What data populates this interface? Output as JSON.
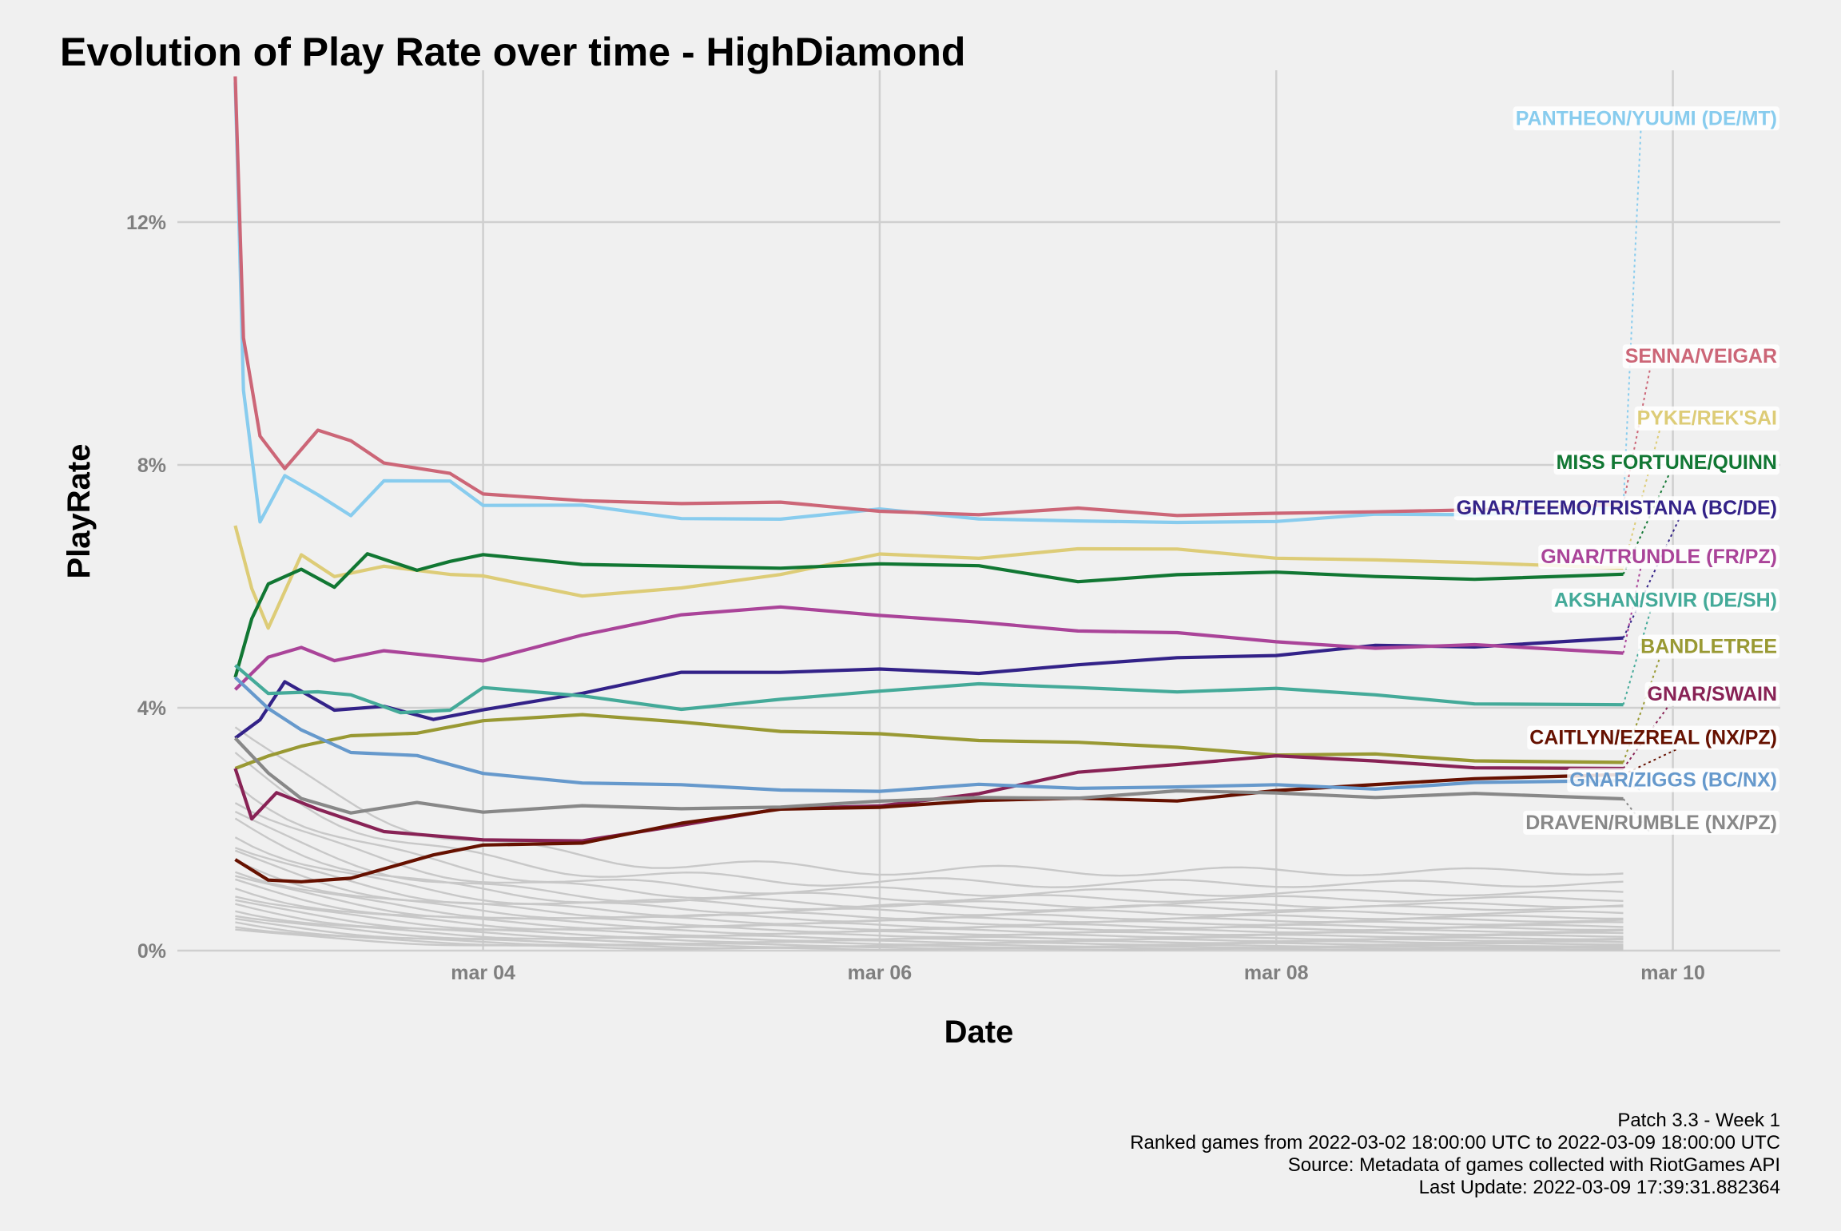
{
  "chart_data": {
    "type": "line",
    "title": "Evolution of Play Rate over time - HighDiamond",
    "xlabel": "Date",
    "ylabel": "PlayRate",
    "x_ticks": [
      "mar 04",
      "mar 06",
      "mar 08",
      "mar 10"
    ],
    "y_ticks": [
      "0%",
      "4%",
      "8%",
      "12%"
    ],
    "xlim": [
      "2022-03-02 11:00",
      "2022-03-10 13:00"
    ],
    "ylim": [
      0,
      14.5
    ],
    "grid": true,
    "legend": "none (direct labels at right)",
    "caption": [
      "Patch 3.3 - Week 1",
      "Ranked games from 2022-03-02 18:00:00 UTC to 2022-03-09 18:00:00 UTC",
      "Source: Metadata of games collected with RiotGames API",
      "Last Update: 2022-03-09 17:39:31.882364"
    ],
    "series": [
      {
        "name": "PANTHEON/YUUMI (DE/MT)",
        "color": "#88ccee",
        "label_y": 13.72,
        "points": [
          [
            "2022-03-02 18:00",
            14.3
          ],
          [
            "2022-03-02 19:00",
            9.2
          ],
          [
            "2022-03-02 21:00",
            7.1
          ],
          [
            "2022-03-03 00:00",
            7.8
          ],
          [
            "2022-03-03 04:00",
            7.5
          ],
          [
            "2022-03-03 08:00",
            7.2
          ],
          [
            "2022-03-03 12:00",
            7.7
          ],
          [
            "2022-03-03 20:00",
            7.75
          ],
          [
            "2022-03-04 00:00",
            7.35
          ],
          [
            "2022-03-04 12:00",
            7.3
          ],
          [
            "2022-03-05 00:00",
            7.15
          ],
          [
            "2022-03-05 12:00",
            7.1
          ],
          [
            "2022-03-06 00:00",
            7.25
          ],
          [
            "2022-03-06 12:00",
            7.15
          ],
          [
            "2022-03-07 00:00",
            7.05
          ],
          [
            "2022-03-07 12:00",
            7.05
          ],
          [
            "2022-03-08 00:00",
            7.1
          ],
          [
            "2022-03-08 12:00",
            7.15
          ],
          [
            "2022-03-09 00:00",
            7.2
          ],
          [
            "2022-03-09 18:00",
            7.3
          ]
        ]
      },
      {
        "name": "SENNA/VEIGAR",
        "color": "#cc6677",
        "label_y": 9.8,
        "points": [
          [
            "2022-03-02 18:00",
            14.4
          ],
          [
            "2022-03-02 19:00",
            10.1
          ],
          [
            "2022-03-02 21:00",
            8.5
          ],
          [
            "2022-03-03 00:00",
            7.9
          ],
          [
            "2022-03-03 04:00",
            8.6
          ],
          [
            "2022-03-03 08:00",
            8.4
          ],
          [
            "2022-03-03 12:00",
            8.0
          ],
          [
            "2022-03-03 20:00",
            7.9
          ],
          [
            "2022-03-04 00:00",
            7.5
          ],
          [
            "2022-03-04 12:00",
            7.4
          ],
          [
            "2022-03-05 00:00",
            7.4
          ],
          [
            "2022-03-05 12:00",
            7.35
          ],
          [
            "2022-03-06 00:00",
            7.25
          ],
          [
            "2022-03-06 12:00",
            7.2
          ],
          [
            "2022-03-07 00:00",
            7.25
          ],
          [
            "2022-03-07 12:00",
            7.2
          ],
          [
            "2022-03-08 00:00",
            7.2
          ],
          [
            "2022-03-08 12:00",
            7.2
          ],
          [
            "2022-03-09 00:00",
            7.3
          ],
          [
            "2022-03-09 18:00",
            7.35
          ]
        ]
      },
      {
        "name": "PYKE/REK'SAI",
        "color": "#ddcc77",
        "label_y": 8.78,
        "points": [
          [
            "2022-03-02 18:00",
            7.0
          ],
          [
            "2022-03-02 20:00",
            6.0
          ],
          [
            "2022-03-02 22:00",
            5.3
          ],
          [
            "2022-03-03 02:00",
            6.5
          ],
          [
            "2022-03-03 06:00",
            6.2
          ],
          [
            "2022-03-03 12:00",
            6.3
          ],
          [
            "2022-03-03 20:00",
            6.2
          ],
          [
            "2022-03-04 00:00",
            6.2
          ],
          [
            "2022-03-04 12:00",
            5.8
          ],
          [
            "2022-03-05 00:00",
            6.0
          ],
          [
            "2022-03-05 12:00",
            6.2
          ],
          [
            "2022-03-06 00:00",
            6.5
          ],
          [
            "2022-03-06 12:00",
            6.5
          ],
          [
            "2022-03-07 00:00",
            6.6
          ],
          [
            "2022-03-07 12:00",
            6.6
          ],
          [
            "2022-03-08 00:00",
            6.5
          ],
          [
            "2022-03-08 12:00",
            6.4
          ],
          [
            "2022-03-09 00:00",
            6.4
          ],
          [
            "2022-03-09 18:00",
            6.3
          ]
        ]
      },
      {
        "name": "MISS FORTUNE/QUINN",
        "color": "#117733",
        "label_y": 8.05,
        "points": [
          [
            "2022-03-02 18:00",
            4.5
          ],
          [
            "2022-03-02 20:00",
            5.5
          ],
          [
            "2022-03-02 22:00",
            6.0
          ],
          [
            "2022-03-03 02:00",
            6.3
          ],
          [
            "2022-03-03 06:00",
            6.0
          ],
          [
            "2022-03-03 10:00",
            6.5
          ],
          [
            "2022-03-03 16:00",
            6.3
          ],
          [
            "2022-03-03 20:00",
            6.4
          ],
          [
            "2022-03-04 00:00",
            6.5
          ],
          [
            "2022-03-04 12:00",
            6.4
          ],
          [
            "2022-03-05 00:00",
            6.3
          ],
          [
            "2022-03-05 12:00",
            6.3
          ],
          [
            "2022-03-06 00:00",
            6.4
          ],
          [
            "2022-03-06 12:00",
            6.3
          ],
          [
            "2022-03-07 00:00",
            6.1
          ],
          [
            "2022-03-07 12:00",
            6.2
          ],
          [
            "2022-03-08 00:00",
            6.2
          ],
          [
            "2022-03-08 12:00",
            6.2
          ],
          [
            "2022-03-09 00:00",
            6.1
          ],
          [
            "2022-03-09 18:00",
            6.2
          ]
        ]
      },
      {
        "name": "GNAR/TEEMO/TRISTANA (BC/DE)",
        "color": "#332288",
        "label_y": 7.3,
        "points": [
          [
            "2022-03-02 18:00",
            3.5
          ],
          [
            "2022-03-02 21:00",
            3.8
          ],
          [
            "2022-03-03 00:00",
            4.4
          ],
          [
            "2022-03-03 06:00",
            4.0
          ],
          [
            "2022-03-03 12:00",
            4.0
          ],
          [
            "2022-03-03 18:00",
            3.8
          ],
          [
            "2022-03-04 00:00",
            4.0
          ],
          [
            "2022-03-04 12:00",
            4.2
          ],
          [
            "2022-03-05 00:00",
            4.6
          ],
          [
            "2022-03-05 12:00",
            4.6
          ],
          [
            "2022-03-06 00:00",
            4.6
          ],
          [
            "2022-03-06 12:00",
            4.6
          ],
          [
            "2022-03-07 00:00",
            4.7
          ],
          [
            "2022-03-07 12:00",
            4.8
          ],
          [
            "2022-03-08 00:00",
            4.9
          ],
          [
            "2022-03-08 12:00",
            5.0
          ],
          [
            "2022-03-09 00:00",
            5.0
          ],
          [
            "2022-03-09 18:00",
            5.15
          ]
        ]
      },
      {
        "name": "GNAR/TRUNDLE (FR/PZ)",
        "color": "#aa4499",
        "label_y": 6.5,
        "points": [
          [
            "2022-03-02 18:00",
            4.3
          ],
          [
            "2022-03-02 22:00",
            4.8
          ],
          [
            "2022-03-03 02:00",
            5.0
          ],
          [
            "2022-03-03 06:00",
            4.8
          ],
          [
            "2022-03-03 12:00",
            4.9
          ],
          [
            "2022-03-04 00:00",
            4.8
          ],
          [
            "2022-03-04 12:00",
            5.2
          ],
          [
            "2022-03-05 00:00",
            5.5
          ],
          [
            "2022-03-05 12:00",
            5.7
          ],
          [
            "2022-03-06 00:00",
            5.5
          ],
          [
            "2022-03-06 12:00",
            5.4
          ],
          [
            "2022-03-07 00:00",
            5.3
          ],
          [
            "2022-03-07 12:00",
            5.2
          ],
          [
            "2022-03-08 00:00",
            5.1
          ],
          [
            "2022-03-08 12:00",
            5.0
          ],
          [
            "2022-03-09 00:00",
            5.0
          ],
          [
            "2022-03-09 18:00",
            4.9
          ]
        ]
      },
      {
        "name": "AKSHAN/SIVIR (DE/SH)",
        "color": "#44aa99",
        "label_y": 5.78,
        "points": [
          [
            "2022-03-02 18:00",
            4.7
          ],
          [
            "2022-03-02 22:00",
            4.2
          ],
          [
            "2022-03-03 04:00",
            4.3
          ],
          [
            "2022-03-03 08:00",
            4.2
          ],
          [
            "2022-03-03 14:00",
            3.9
          ],
          [
            "2022-03-03 20:00",
            4.0
          ],
          [
            "2022-03-04 00:00",
            4.3
          ],
          [
            "2022-03-04 12:00",
            4.2
          ],
          [
            "2022-03-05 00:00",
            4.0
          ],
          [
            "2022-03-05 12:00",
            4.1
          ],
          [
            "2022-03-06 00:00",
            4.3
          ],
          [
            "2022-03-06 12:00",
            4.4
          ],
          [
            "2022-03-07 00:00",
            4.3
          ],
          [
            "2022-03-07 12:00",
            4.3
          ],
          [
            "2022-03-08 00:00",
            4.3
          ],
          [
            "2022-03-08 12:00",
            4.2
          ],
          [
            "2022-03-09 00:00",
            4.1
          ],
          [
            "2022-03-09 18:00",
            4.05
          ]
        ]
      },
      {
        "name": "BANDLETREE",
        "color": "#999933",
        "label_y": 5.02,
        "points": [
          [
            "2022-03-02 18:00",
            3.0
          ],
          [
            "2022-03-02 22:00",
            3.2
          ],
          [
            "2022-03-03 02:00",
            3.4
          ],
          [
            "2022-03-03 08:00",
            3.5
          ],
          [
            "2022-03-03 16:00",
            3.6
          ],
          [
            "2022-03-04 00:00",
            3.8
          ],
          [
            "2022-03-04 12:00",
            3.85
          ],
          [
            "2022-03-05 00:00",
            3.8
          ],
          [
            "2022-03-05 12:00",
            3.6
          ],
          [
            "2022-03-06 00:00",
            3.55
          ],
          [
            "2022-03-06 12:00",
            3.5
          ],
          [
            "2022-03-07 00:00",
            3.4
          ],
          [
            "2022-03-07 12:00",
            3.35
          ],
          [
            "2022-03-08 00:00",
            3.25
          ],
          [
            "2022-03-08 12:00",
            3.2
          ],
          [
            "2022-03-09 00:00",
            3.15
          ],
          [
            "2022-03-09 18:00",
            3.1
          ]
        ]
      },
      {
        "name": "GNAR/SWAIN",
        "color": "#882255",
        "label_y": 4.24,
        "points": [
          [
            "2022-03-02 18:00",
            3.0
          ],
          [
            "2022-03-02 20:00",
            2.2
          ],
          [
            "2022-03-02 23:00",
            2.6
          ],
          [
            "2022-03-03 04:00",
            2.3
          ],
          [
            "2022-03-03 12:00",
            2.0
          ],
          [
            "2022-03-04 00:00",
            1.8
          ],
          [
            "2022-03-04 12:00",
            1.8
          ],
          [
            "2022-03-05 00:00",
            2.1
          ],
          [
            "2022-03-05 12:00",
            2.3
          ],
          [
            "2022-03-06 00:00",
            2.4
          ],
          [
            "2022-03-06 12:00",
            2.6
          ],
          [
            "2022-03-07 00:00",
            2.9
          ],
          [
            "2022-03-07 12:00",
            3.1
          ],
          [
            "2022-03-08 00:00",
            3.2
          ],
          [
            "2022-03-08 12:00",
            3.1
          ],
          [
            "2022-03-09 00:00",
            3.05
          ],
          [
            "2022-03-09 18:00",
            3.0
          ]
        ]
      },
      {
        "name": "CAITLYN/EZREAL (NX/PZ)",
        "color": "#661100",
        "label_y": 3.52,
        "points": [
          [
            "2022-03-02 18:00",
            1.5
          ],
          [
            "2022-03-02 22:00",
            1.2
          ],
          [
            "2022-03-03 02:00",
            1.1
          ],
          [
            "2022-03-03 08:00",
            1.2
          ],
          [
            "2022-03-03 18:00",
            1.6
          ],
          [
            "2022-03-04 00:00",
            1.7
          ],
          [
            "2022-03-04 12:00",
            1.8
          ],
          [
            "2022-03-05 00:00",
            2.1
          ],
          [
            "2022-03-05 12:00",
            2.3
          ],
          [
            "2022-03-06 00:00",
            2.4
          ],
          [
            "2022-03-06 12:00",
            2.45
          ],
          [
            "2022-03-07 00:00",
            2.5
          ],
          [
            "2022-03-07 12:00",
            2.5
          ],
          [
            "2022-03-08 00:00",
            2.6
          ],
          [
            "2022-03-08 12:00",
            2.75
          ],
          [
            "2022-03-09 00:00",
            2.85
          ],
          [
            "2022-03-09 18:00",
            2.9
          ]
        ]
      },
      {
        "name": "GNAR/ZIGGS (BC/NX)",
        "color": "#6699cc",
        "label_y": 2.82,
        "points": [
          [
            "2022-03-02 18:00",
            4.5
          ],
          [
            "2022-03-02 22:00",
            4.0
          ],
          [
            "2022-03-03 02:00",
            3.6
          ],
          [
            "2022-03-03 08:00",
            3.3
          ],
          [
            "2022-03-03 16:00",
            3.2
          ],
          [
            "2022-03-04 00:00",
            2.9
          ],
          [
            "2022-03-04 12:00",
            2.8
          ],
          [
            "2022-03-05 00:00",
            2.7
          ],
          [
            "2022-03-05 12:00",
            2.65
          ],
          [
            "2022-03-06 00:00",
            2.65
          ],
          [
            "2022-03-06 12:00",
            2.7
          ],
          [
            "2022-03-07 00:00",
            2.7
          ],
          [
            "2022-03-07 12:00",
            2.7
          ],
          [
            "2022-03-08 00:00",
            2.7
          ],
          [
            "2022-03-08 12:00",
            2.7
          ],
          [
            "2022-03-09 00:00",
            2.75
          ],
          [
            "2022-03-09 18:00",
            2.8
          ]
        ]
      },
      {
        "name": "DRAVEN/RUMBLE (NX/PZ)",
        "color": "#888888",
        "label_y": 2.12,
        "points": [
          [
            "2022-03-02 18:00",
            3.5
          ],
          [
            "2022-03-02 22:00",
            2.9
          ],
          [
            "2022-03-03 02:00",
            2.5
          ],
          [
            "2022-03-03 08:00",
            2.3
          ],
          [
            "2022-03-03 16:00",
            2.4
          ],
          [
            "2022-03-04 00:00",
            2.3
          ],
          [
            "2022-03-04 12:00",
            2.4
          ],
          [
            "2022-03-05 00:00",
            2.3
          ],
          [
            "2022-03-05 12:00",
            2.4
          ],
          [
            "2022-03-06 00:00",
            2.45
          ],
          [
            "2022-03-06 12:00",
            2.5
          ],
          [
            "2022-03-07 00:00",
            2.55
          ],
          [
            "2022-03-07 12:00",
            2.6
          ],
          [
            "2022-03-08 00:00",
            2.6
          ],
          [
            "2022-03-08 12:00",
            2.55
          ],
          [
            "2022-03-09 00:00",
            2.55
          ],
          [
            "2022-03-09 18:00",
            2.5
          ]
        ]
      }
    ],
    "background_series_color": "#c8c8c8",
    "background_series_end_values": [
      1.3,
      1.1,
      0.95,
      0.85,
      0.75,
      0.7,
      0.62,
      0.55,
      0.5,
      0.45,
      0.4,
      0.36,
      0.32,
      0.28,
      0.24,
      0.2,
      0.17,
      0.14,
      0.11,
      0.08,
      0.06,
      0.04,
      0.02
    ]
  }
}
